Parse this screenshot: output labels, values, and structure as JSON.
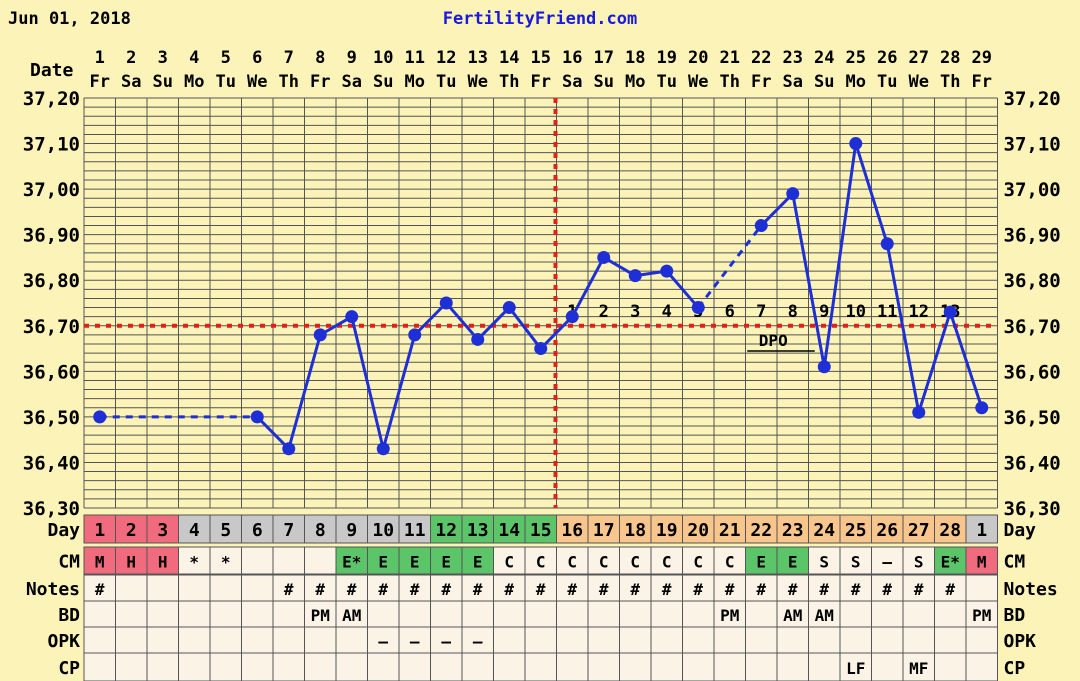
{
  "header": {
    "date": "Jun 01, 2018",
    "site": "FertilityFriend.com"
  },
  "colors": {
    "background": "#fbf3b7",
    "grid": "#555555",
    "line": "#1f2fd6",
    "coverline": "#e0201a",
    "menses": "#f06b7d",
    "fertile": "#5cc56a",
    "luteal": "#f8c58c",
    "gray": "#c8c8c8"
  },
  "row_labels": {
    "date": "Date",
    "day": "Day",
    "cm": "CM",
    "notes": "Notes",
    "bd": "BD",
    "opk": "OPK",
    "cp": "CP"
  },
  "dpo_label": "DPO",
  "chart_data": {
    "type": "line",
    "x_dates": [
      "1",
      "2",
      "3",
      "4",
      "5",
      "6",
      "7",
      "8",
      "9",
      "10",
      "11",
      "12",
      "13",
      "14",
      "15",
      "16",
      "17",
      "18",
      "19",
      "20",
      "21",
      "22",
      "23",
      "24",
      "25",
      "26",
      "27",
      "28",
      "29"
    ],
    "x_weekdays": [
      "Fr",
      "Sa",
      "Su",
      "Mo",
      "Tu",
      "We",
      "Th",
      "Fr",
      "Sa",
      "Su",
      "Mo",
      "Tu",
      "We",
      "Th",
      "Fr",
      "Sa",
      "Su",
      "Mo",
      "Tu",
      "We",
      "Th",
      "Fr",
      "Sa",
      "Su",
      "Mo",
      "Tu",
      "We",
      "Th",
      "Fr"
    ],
    "cycle_days": [
      "1",
      "2",
      "3",
      "4",
      "5",
      "6",
      "7",
      "8",
      "9",
      "10",
      "11",
      "12",
      "13",
      "14",
      "15",
      "16",
      "17",
      "18",
      "19",
      "20",
      "21",
      "22",
      "23",
      "24",
      "25",
      "26",
      "27",
      "28",
      "1"
    ],
    "temperatures": [
      36.5,
      null,
      null,
      null,
      null,
      36.5,
      36.43,
      36.68,
      36.72,
      36.43,
      36.68,
      36.75,
      36.67,
      36.74,
      36.65,
      36.72,
      36.85,
      36.81,
      36.82,
      36.74,
      null,
      36.92,
      36.99,
      36.61,
      37.1,
      36.88,
      36.51,
      36.73,
      36.52
    ],
    "ylim": [
      36.3,
      37.2
    ],
    "y_ticks": [
      "36,30",
      "36,40",
      "36,50",
      "36,60",
      "36,70",
      "36,80",
      "36,90",
      "37,00",
      "37,10",
      "37,20"
    ],
    "coverline": 36.7,
    "ovulation_day": 15,
    "dpo": [
      "",
      "",
      "",
      "",
      "",
      "",
      "",
      "",
      "",
      "",
      "",
      "",
      "",
      "",
      "",
      "1",
      "2",
      "3",
      "4",
      "5",
      "6",
      "7",
      "8",
      "9",
      "10",
      "11",
      "12",
      "13",
      ""
    ],
    "cm": [
      "M",
      "H",
      "H",
      "*",
      "*",
      "",
      "",
      "",
      "E*",
      "E",
      "E",
      "E",
      "E",
      "C",
      "C",
      "C",
      "C",
      "C",
      "C",
      "C",
      "C",
      "E",
      "E",
      "S",
      "S",
      "–",
      "S",
      "E*",
      "M"
    ],
    "notes": [
      "#",
      "",
      "",
      "",
      "",
      "",
      "#",
      "#",
      "#",
      "#",
      "#",
      "#",
      "#",
      "#",
      "#",
      "#",
      "#",
      "#",
      "#",
      "#",
      "#",
      "#",
      "#",
      "#",
      "#",
      "#",
      "#",
      "#",
      ""
    ],
    "bd": [
      "",
      "",
      "",
      "",
      "",
      "",
      "",
      "PM",
      "AM",
      "",
      "",
      "",
      "",
      "",
      "",
      "",
      "",
      "",
      "",
      "",
      "PM",
      "",
      "AM",
      "AM",
      "",
      "",
      "",
      "",
      "PM"
    ],
    "opk": [
      "",
      "",
      "",
      "",
      "",
      "",
      "",
      "",
      "",
      "–",
      "–",
      "–",
      "–",
      "",
      "",
      "",
      "",
      "",
      "",
      "",
      "",
      "",
      "",
      "",
      "",
      "",
      "",
      "",
      ""
    ],
    "cp": [
      "",
      "",
      "",
      "",
      "",
      "",
      "",
      "",
      "",
      "",
      "",
      "",
      "",
      "",
      "",
      "",
      "",
      "",
      "",
      "",
      "",
      "",
      "",
      "",
      "LF",
      "",
      "MF",
      "",
      ""
    ],
    "day_phase": [
      "menses",
      "menses",
      "menses",
      "gray",
      "gray",
      "gray",
      "gray",
      "gray",
      "gray",
      "gray",
      "gray",
      "fertile",
      "fertile",
      "fertile",
      "fertile",
      "luteal",
      "luteal",
      "luteal",
      "luteal",
      "luteal",
      "luteal",
      "luteal",
      "luteal",
      "luteal",
      "luteal",
      "luteal",
      "luteal",
      "luteal",
      "gray"
    ],
    "grid": true
  }
}
